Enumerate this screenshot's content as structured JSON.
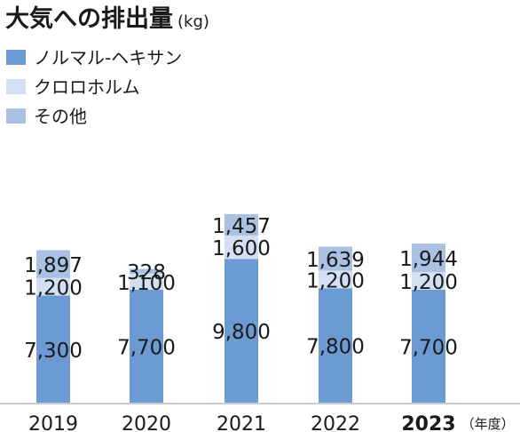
{
  "chart_data": {
    "type": "bar",
    "stacked": true,
    "title": "大気への排出量",
    "unit": "(kg)",
    "categories": [
      "2019",
      "2020",
      "2021",
      "2022",
      "2023"
    ],
    "category_bold": [
      false,
      false,
      false,
      false,
      true
    ],
    "x_suffix": "（年度）",
    "series": [
      {
        "name": "ノルマル-ヘキサン",
        "color": "#6b9bd2",
        "values": [
          7300,
          7700,
          9800,
          7800,
          7700
        ],
        "labels": [
          "7,300",
          "7,700",
          "9,800",
          "7,800",
          "7,700"
        ]
      },
      {
        "name": "クロロホルム",
        "color": "#d3e0f3",
        "values": [
          1200,
          1100,
          1600,
          1200,
          1200
        ],
        "labels": [
          "1,200",
          "1,100",
          "1,600",
          "1,200",
          "1,200"
        ]
      },
      {
        "name": "その他",
        "color": "#a9c1e3",
        "values": [
          1897,
          328,
          1457,
          1639,
          1944
        ],
        "labels": [
          "1,897",
          "328",
          "1,457",
          "1,639",
          "1,944"
        ]
      }
    ],
    "grid": false,
    "legend_position": "top-left"
  }
}
